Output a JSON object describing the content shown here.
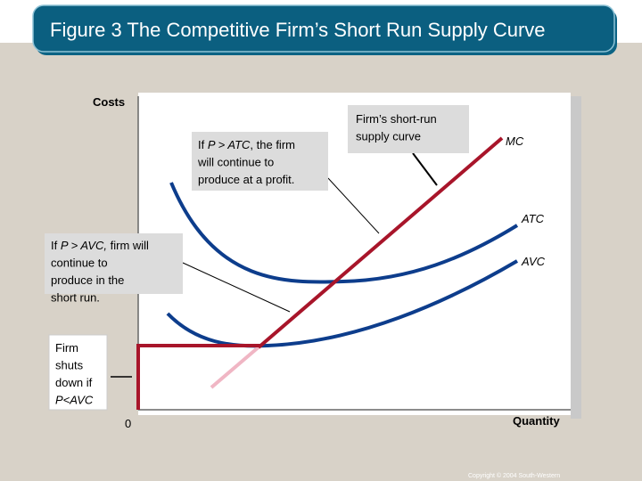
{
  "header": {
    "title": "Figure 3 The Competitive Firm’s Short Run Supply Curve"
  },
  "diagram": {
    "y_axis_label": "Costs",
    "x_axis_label": "Quantity",
    "origin_label": "0",
    "curve_labels": [
      "MC",
      "ATC",
      "AVC"
    ],
    "notes": [
      {
        "lines": [
          [
            "Firm’s short-run"
          ],
          [
            "supply curve"
          ]
        ]
      },
      {
        "lines": [
          [
            "If ",
            "P > ATC",
            ", the firm"
          ],
          [
            "will continue to"
          ],
          [
            "produce at a profit."
          ]
        ]
      },
      {
        "lines": [
          [
            "If ",
            "P > AVC,",
            " firm will"
          ],
          [
            "continue to"
          ],
          [
            "produce in the"
          ],
          [
            "short run."
          ]
        ]
      },
      {
        "lines": [
          [
            "Firm"
          ],
          [
            "shuts"
          ],
          [
            "down if"
          ],
          [
            "P<AVC"
          ]
        ]
      }
    ]
  },
  "footer": {
    "copyright": "Copyright © 2004  South-Western"
  }
}
